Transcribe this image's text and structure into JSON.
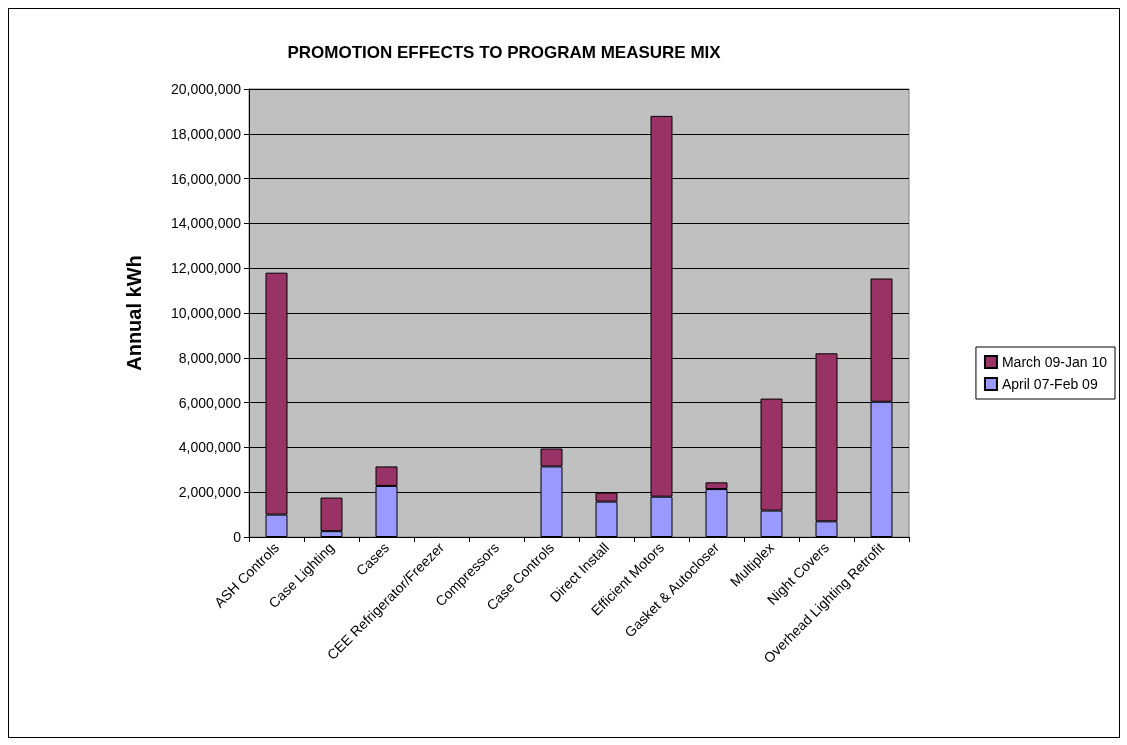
{
  "chart_data": {
    "type": "bar",
    "title": "PROMOTION EFFECTS TO PROGRAM MEASURE MIX",
    "ylabel": "Annual kWh",
    "categories": [
      "ASH Controls",
      "Case Lighting",
      "Cases",
      "CEE Refrigerator/Freezer",
      "Compressors",
      "Case Controls",
      "Direct Install",
      "Efficient Motors",
      "Gasket & Autocloser",
      "Multiplex",
      "Night Covers",
      "Overhead Lighting Retrofit"
    ],
    "series": [
      {
        "name": "April 07-Feb 09",
        "color": "#9999ff",
        "values": [
          1000000,
          260000,
          2280000,
          0,
          0,
          3150000,
          1580000,
          1800000,
          2140000,
          1180000,
          700000,
          6040000
        ]
      },
      {
        "name": "March 09-Jan 10",
        "color": "#993366",
        "values": [
          10800000,
          1500000,
          870000,
          0,
          0,
          800000,
          400000,
          17000000,
          300000,
          5000000,
          7500000,
          5500000
        ]
      }
    ],
    "stacked": true,
    "ylim": [
      0,
      20000000
    ],
    "yticks": [
      0,
      {
        "value": 2000000,
        "label": "2,000,000"
      },
      {
        "value": 4000000,
        "label": "4,000,000"
      },
      {
        "value": 6000000,
        "label": "6,000,000"
      },
      {
        "value": 8000000,
        "label": "8,000,000"
      },
      {
        "value": 10000000,
        "label": "10,000,000"
      },
      {
        "value": 12000000,
        "label": "12,000,000"
      },
      {
        "value": 14000000,
        "label": "14,000,000"
      },
      {
        "value": 16000000,
        "label": "16,000,000"
      },
      {
        "value": 18000000,
        "label": "18,000,000"
      },
      {
        "value": 20000000,
        "label": "20,000,000"
      }
    ],
    "grid": "y",
    "legend": "right"
  }
}
